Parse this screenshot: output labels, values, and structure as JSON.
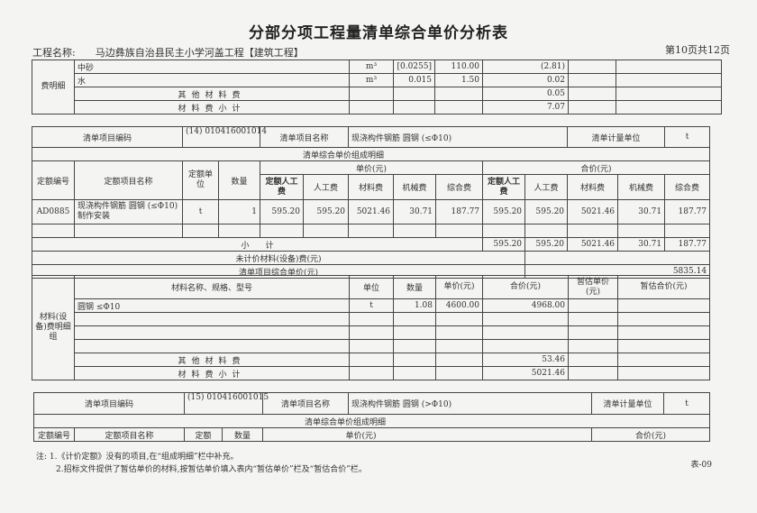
{
  "title": "分部分项工程量清单综合单价分析表",
  "project_label": "工程名称:",
  "project_name": "马边彝族自治县民主小学河盖工程【建筑工程】",
  "page_info": "第10页共12页",
  "top_table": {
    "side_label": "费明细",
    "rows": [
      {
        "name": "中砂",
        "unit": "m³",
        "qty": "[0.0255]",
        "price": "110.00",
        "amount": "(2.81)"
      },
      {
        "name": "水",
        "unit": "m³",
        "qty": "0.015",
        "price": "1.50",
        "amount": "0.02"
      }
    ],
    "other_label": "其他材料费",
    "other_amount": "0.05",
    "subtotal_label": "材料费小计",
    "subtotal_amount": "7.07"
  },
  "item14": {
    "code_label": "清单项目编码",
    "code": "(14) 010416001014",
    "name_label": "清单项目名称",
    "name": "现浇构件钢筋 圆钢 (≤Φ10)",
    "unit_label": "清单计量单位",
    "unit": "t",
    "detail_label": "清单综合单价组成明细",
    "headers": {
      "quota_no": "定额编号",
      "quota_name": "定额项目名称",
      "quota_unit": "定额单位",
      "qty": "数量",
      "unit_price": "单价(元)",
      "total_price": "合价(元)",
      "quota_labor": "定额人工费",
      "labor": "人工费",
      "material": "材料费",
      "machine": "机械费",
      "overall": "综合费"
    },
    "rows": [
      {
        "no": "AD0885",
        "name": "现浇构件钢筋 圆钢 (≤Φ10) 制作安装",
        "unit": "t",
        "qty": "1",
        "u": [
          "595.20",
          "595.20",
          "5021.46",
          "30.71",
          "187.77"
        ],
        "t": [
          "595.20",
          "595.20",
          "5021.46",
          "30.71",
          "187.77"
        ]
      }
    ],
    "subtotal_label": "小　　计",
    "subtotal": [
      "595.20",
      "595.20",
      "5021.46",
      "30.71",
      "187.77"
    ],
    "unpriced_label": "未计价材料(设备)费(元)",
    "composite_label": "清单项目综合单价(元)",
    "composite": "5835.14",
    "materials": {
      "side_label": "材料(设备)费明细组",
      "headers": {
        "name": "材料名称、规格、型号",
        "unit": "单位",
        "qty": "数量",
        "price": "单价(元)",
        "amount": "合价(元)",
        "est_price": "暂估单价(元)",
        "est_amount": "暂估合价(元)"
      },
      "rows": [
        {
          "name": "圆钢 ≤Φ10",
          "unit": "t",
          "qty": "1.08",
          "price": "4600.00",
          "amount": "4968.00"
        }
      ],
      "other_label": "其他材料费",
      "other_amount": "53.46",
      "subtotal_label": "材料费小计",
      "subtotal_amount": "5021.46"
    }
  },
  "item15": {
    "code_label": "清单项目编码",
    "code": "(15) 010416001015",
    "name_label": "清单项目名称",
    "name": "现浇构件钢筋 圆钢 (>Φ10)",
    "unit_label": "清单计量单位",
    "unit": "t",
    "detail_label": "清单综合单价组成明细",
    "headers": {
      "quota_no": "定额编号",
      "quota_name": "定额项目名称",
      "quota_unit": "定额",
      "qty": "数量",
      "unit_price": "单价(元)",
      "total_price": "合价(元)"
    }
  },
  "notes": [
    "注: 1.《计价定额》没有的项目,在“组成明细”栏中补充。",
    "2.招标文件提供了暂估单价的材料,按暂估单价填入表内“暂估单价”栏及“暂估合价”栏。"
  ],
  "form_no": "表-09"
}
